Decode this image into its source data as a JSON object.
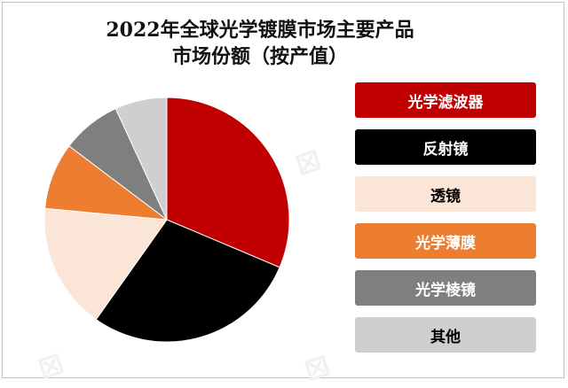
{
  "title_line1": "2022年全球光学镀膜市场主要产品",
  "title_line2": "市场份额（按产值）",
  "chart_data": {
    "type": "pie",
    "title": "2022年全球光学镀膜市场主要产品市场份额（按产值）",
    "legend_position": "right",
    "categories": [
      "光学滤波器",
      "反射镜",
      "透镜",
      "光学薄膜",
      "光学棱镜",
      "其他"
    ],
    "values": [
      32,
      29,
      17,
      9,
      8,
      7
    ],
    "colors": [
      "#c00000",
      "#000000",
      "#fbe5d6",
      "#ed7d31",
      "#7f7f7f",
      "#d0cece"
    ],
    "text_colors": [
      "#ffffff",
      "#ffffff",
      "#000000",
      "#ffffff",
      "#ffffff",
      "#000000"
    ]
  }
}
